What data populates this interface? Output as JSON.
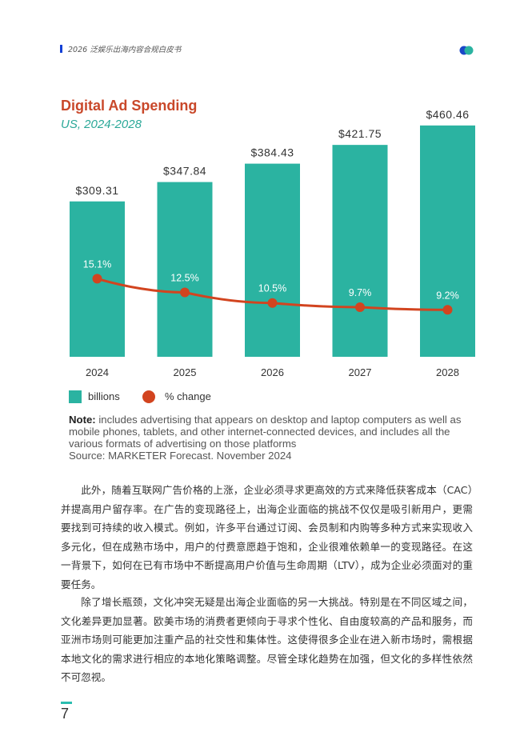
{
  "header": {
    "title": "2026 泛娱乐出海内容合规白皮书",
    "accent": "#1340d6"
  },
  "chart_data": {
    "type": "bar",
    "title": "Digital Ad Spending",
    "subtitle": "US, 2024-2028",
    "categories": [
      "2024",
      "2025",
      "2026",
      "2027",
      "2028"
    ],
    "series": [
      {
        "name": "billions",
        "type": "bar",
        "values": [
          309.31,
          347.84,
          384.43,
          421.75,
          460.46
        ],
        "labels": [
          "$309.31",
          "$347.84",
          "$384.43",
          "$421.75",
          "$460.46"
        ],
        "color": "#2bb3a1"
      },
      {
        "name": "% change",
        "type": "line",
        "values": [
          15.1,
          12.5,
          10.5,
          9.7,
          9.2
        ],
        "labels": [
          "15.1%",
          "12.5%",
          "10.5%",
          "9.7%",
          "9.2%"
        ],
        "color": "#d2441f"
      }
    ],
    "legend": "bottom-left",
    "grid": false,
    "note_label": "Note:",
    "note": "includes advertising that appears on desktop and laptop computers as well as mobile phones, tablets, and other internet-connected devices, and includes all the various formats of advertising on those platforms",
    "source": "Source: MARKETER Forecast. November 2024"
  },
  "body": {
    "paragraphs": [
      "此外，随着互联网广告价格的上涨，企业必须寻求更高效的方式来降低获客成本（CAC）并提高用户留存率。在广告的变现路径上，出海企业面临的挑战不仅仅是吸引新用户，更需要找到可持续的收入模式。例如，许多平台通过订阅、会员制和内购等多种方式来实现收入多元化，但在成熟市场中，用户的付费意愿趋于饱和，企业很难依赖单一的变现路径。在这一背景下，如何在已有市场中不断提高用户价值与生命周期（LTV），成为企业必须面对的重要任务。",
      "除了增长瓶颈，文化冲突无疑是出海企业面临的另一大挑战。特别是在不同区域之间，文化差异更加显著。欧美市场的消费者更倾向于寻求个性化、自由度较高的产品和服务，而亚洲市场则可能更加注重产品的社交性和集体性。这使得很多企业在进入新市场时，需根据本地文化的需求进行相应的本地化策略调整。尽管全球化趋势在加强，但文化的多样性依然不可忽视。"
    ]
  },
  "footer": {
    "page_number": "7",
    "accent": "#2bbdb0"
  }
}
